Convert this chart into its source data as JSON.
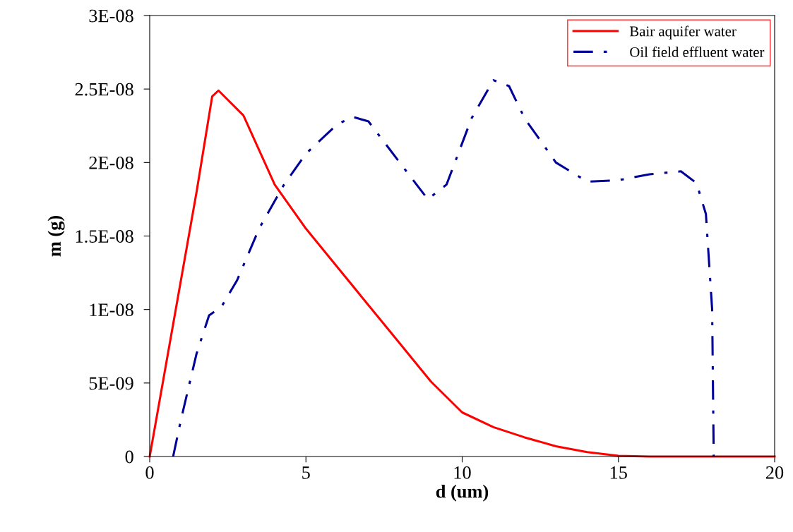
{
  "chart_data": {
    "type": "line",
    "xlabel": "d (um)",
    "ylabel": "m (g)",
    "xlim": [
      0,
      20
    ],
    "xticks": [
      0,
      5,
      10,
      15,
      20
    ],
    "ylim": [
      0,
      3e-08
    ],
    "yticks": [
      0,
      {
        "value": 5e-09,
        "label": "5E-09"
      },
      {
        "value": 1e-08,
        "label": "1E-08"
      },
      {
        "value": 1.5e-08,
        "label": "1.5E-08"
      },
      {
        "value": 2e-08,
        "label": "2E-08"
      },
      {
        "value": 2.5e-08,
        "label": "2.5E-08"
      },
      {
        "value": 3e-08,
        "label": "3E-08"
      }
    ],
    "grid": false,
    "legend": "top right",
    "marker": "none",
    "series": [
      {
        "name": "Bair aquifer water",
        "color": "#ff0000",
        "line_style": "solid",
        "x": [
          0,
          1,
          1.5,
          2,
          2.2,
          3,
          4,
          5,
          6,
          7,
          8,
          9,
          10,
          11,
          12,
          13,
          14,
          15,
          16,
          20
        ],
        "values": [
          0,
          1.2e-08,
          1.8e-08,
          2.45e-08,
          2.49e-08,
          2.32e-08,
          1.85e-08,
          1.55e-08,
          1.29e-08,
          1.03e-08,
          7.7e-09,
          5.1e-09,
          3e-09,
          2e-09,
          1.3e-09,
          7e-10,
          3e-10,
          5e-11,
          0,
          0
        ]
      },
      {
        "name": "Oil field effluent water",
        "color": "#000099",
        "line_style": "dashdot",
        "x": [
          0.75,
          1,
          1.5,
          1.9,
          2.3,
          2.8,
          3.5,
          4.3,
          5,
          6,
          6.5,
          7,
          8,
          8.9,
          9.5,
          10.3,
          11,
          11.5,
          12,
          13,
          14,
          15,
          16,
          17,
          17.5,
          17.8,
          18,
          18.05
        ],
        "values": [
          0,
          2.5e-09,
          7e-09,
          9.6e-09,
          1.02e-08,
          1.2e-08,
          1.55e-08,
          1.85e-08,
          2.06e-08,
          2.26e-08,
          2.31e-08,
          2.28e-08,
          2e-08,
          1.75e-08,
          1.85e-08,
          2.3e-08,
          2.56e-08,
          2.52e-08,
          2.3e-08,
          2e-08,
          1.87e-08,
          1.88e-08,
          1.92e-08,
          1.94e-08,
          1.86e-08,
          1.65e-08,
          1e-08,
          0
        ]
      }
    ]
  }
}
